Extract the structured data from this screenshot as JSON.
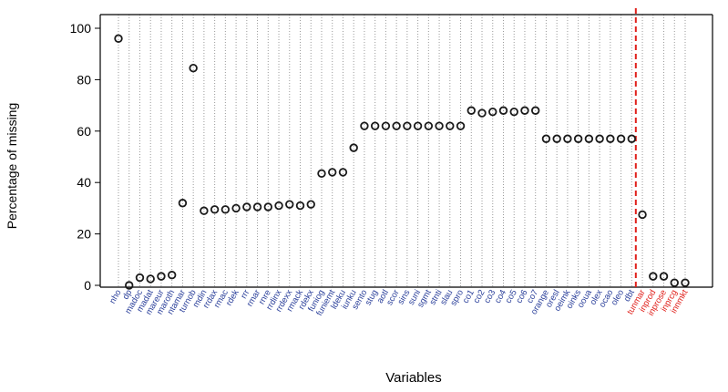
{
  "chart_data": {
    "type": "scatter",
    "title": "",
    "xlabel": "Variables",
    "ylabel": "Percentage of missing",
    "ylim": [
      0,
      100
    ],
    "yticks": [
      0,
      20,
      40,
      60,
      80,
      100
    ],
    "grid": "vertical dotted lines at each variable",
    "cutoff_line": {
      "after_variable": "dbt",
      "color": "#e0201b",
      "style": "dashed"
    },
    "label_colors": {
      "predictor": "#2a3f9a",
      "outcome": "#e0201b"
    },
    "categories": [
      "nho",
      "dp",
      "madoc",
      "madat",
      "mareur",
      "maroth",
      "ntamar",
      "turnob",
      "mdin",
      "rrdax",
      "rmac",
      "rdek",
      "rrr",
      "rmar",
      "rnre",
      "rrdinx",
      "rrdexx",
      "rmack",
      "rdekx",
      "funiog",
      "funiemt",
      "ldeku",
      "iunku",
      "sento",
      "stug",
      "aotl",
      "scor",
      "sins",
      "suni",
      "sgmt",
      "stnti",
      "slau",
      "spro",
      "co1",
      "co2",
      "co3",
      "co4",
      "co5",
      "co6",
      "co7",
      "orange",
      "oresl",
      "oeimk",
      "oinks",
      "ooua",
      "olex",
      "ocao",
      "oleo",
      "dbt",
      "tunmar",
      "inprod",
      "inprose",
      "inprcg",
      "innmkt"
    ],
    "variable_group": [
      "predictor",
      "predictor",
      "predictor",
      "predictor",
      "predictor",
      "predictor",
      "predictor",
      "predictor",
      "predictor",
      "predictor",
      "predictor",
      "predictor",
      "predictor",
      "predictor",
      "predictor",
      "predictor",
      "predictor",
      "predictor",
      "predictor",
      "predictor",
      "predictor",
      "predictor",
      "predictor",
      "predictor",
      "predictor",
      "predictor",
      "predictor",
      "predictor",
      "predictor",
      "predictor",
      "predictor",
      "predictor",
      "predictor",
      "predictor",
      "predictor",
      "predictor",
      "predictor",
      "predictor",
      "predictor",
      "predictor",
      "predictor",
      "predictor",
      "predictor",
      "predictor",
      "predictor",
      "predictor",
      "predictor",
      "predictor",
      "predictor",
      "outcome",
      "outcome",
      "outcome",
      "outcome",
      "outcome"
    ],
    "values": [
      96,
      0,
      3,
      2.5,
      3.5,
      4,
      32,
      84.5,
      29,
      29.5,
      29.5,
      30,
      30.5,
      30.5,
      30.5,
      31,
      31.5,
      31,
      31.5,
      43.5,
      44,
      44,
      53.5,
      62,
      62,
      62,
      62,
      62,
      62,
      62,
      62,
      62,
      62,
      68,
      67,
      67.5,
      68,
      67.5,
      68,
      68,
      57,
      57,
      57,
      57,
      57,
      57,
      57,
      57,
      57,
      27.5,
      3.5,
      3.5,
      1,
      1
    ]
  }
}
